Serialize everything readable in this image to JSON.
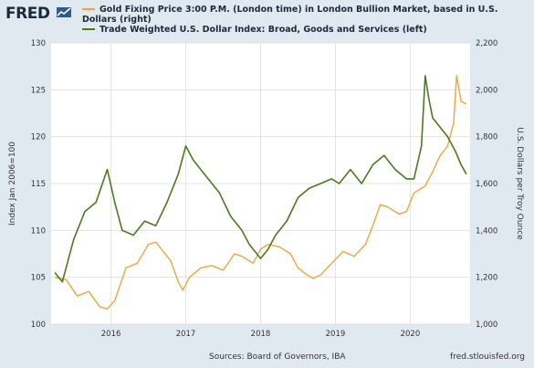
{
  "brand": {
    "logo_text": "FRED"
  },
  "footer": {
    "sources": "Sources: Board of Governors, IBA",
    "site": "fred.stlouisfed.org"
  },
  "chart_data": {
    "type": "line",
    "x_ticks": [
      "2016",
      "2017",
      "2018",
      "2019",
      "2020"
    ],
    "y_left": {
      "label": "Index Jan 2006=100",
      "range": [
        100,
        130
      ],
      "ticks": [
        "100",
        "105",
        "110",
        "115",
        "120",
        "125",
        "130"
      ]
    },
    "y_right": {
      "label": "U.S. Dollars per Troy Ounce",
      "range": [
        1000,
        2200
      ],
      "ticks": [
        "1,000",
        "1,200",
        "1,400",
        "1,600",
        "1,800",
        "2,000",
        "2,200"
      ]
    },
    "series": [
      {
        "name": "Gold Fixing Price 3:00 P.M. (London time) in London Bullion Market, based in U.S. Dollars (right)",
        "axis": "right",
        "color": "#f2a43a",
        "x": [
          2015.25,
          2015.4,
          2015.55,
          2015.7,
          2015.85,
          2015.95,
          2016.05,
          2016.2,
          2016.35,
          2016.5,
          2016.6,
          2016.7,
          2016.8,
          2016.9,
          2016.96,
          2017.05,
          2017.2,
          2017.35,
          2017.5,
          2017.65,
          2017.75,
          2017.9,
          2018.0,
          2018.1,
          2018.25,
          2018.4,
          2018.5,
          2018.6,
          2018.7,
          2018.8,
          2018.95,
          2019.1,
          2019.25,
          2019.4,
          2019.5,
          2019.6,
          2019.7,
          2019.85,
          2019.95,
          2020.05,
          2020.2,
          2020.3,
          2020.4,
          2020.5,
          2020.58,
          2020.62,
          2020.68,
          2020.75
        ],
        "values": [
          1200,
          1190,
          1120,
          1140,
          1075,
          1065,
          1100,
          1240,
          1260,
          1340,
          1350,
          1310,
          1270,
          1180,
          1145,
          1200,
          1240,
          1250,
          1230,
          1300,
          1290,
          1260,
          1320,
          1340,
          1330,
          1300,
          1240,
          1215,
          1195,
          1210,
          1260,
          1310,
          1290,
          1340,
          1420,
          1510,
          1500,
          1470,
          1480,
          1560,
          1590,
          1650,
          1720,
          1760,
          1860,
          2060,
          1950,
          1940
        ]
      },
      {
        "name": "Trade Weighted U.S. Dollar Index: Broad, Goods and Services (left)",
        "axis": "left",
        "color": "#4c7a1a",
        "x": [
          2015.25,
          2015.35,
          2015.5,
          2015.65,
          2015.8,
          2015.95,
          2016.05,
          2016.15,
          2016.3,
          2016.45,
          2016.6,
          2016.75,
          2016.9,
          2017.0,
          2017.1,
          2017.25,
          2017.45,
          2017.6,
          2017.75,
          2017.85,
          2018.0,
          2018.1,
          2018.2,
          2018.35,
          2018.5,
          2018.65,
          2018.8,
          2018.95,
          2019.05,
          2019.2,
          2019.35,
          2019.5,
          2019.65,
          2019.8,
          2019.95,
          2020.05,
          2020.15,
          2020.2,
          2020.25,
          2020.3,
          2020.4,
          2020.5,
          2020.6,
          2020.68,
          2020.75
        ],
        "values": [
          105.5,
          104.5,
          109,
          112,
          113,
          116.5,
          113,
          110,
          109.5,
          111,
          110.5,
          113,
          116,
          119,
          117.5,
          116,
          114,
          111.5,
          110,
          108.5,
          107,
          108,
          109.5,
          111,
          113.5,
          114.5,
          115,
          115.5,
          115,
          116.5,
          115,
          117,
          118,
          116.5,
          115.5,
          115.5,
          119,
          126.5,
          124,
          122,
          121,
          120,
          118.5,
          117,
          116
        ]
      }
    ]
  }
}
